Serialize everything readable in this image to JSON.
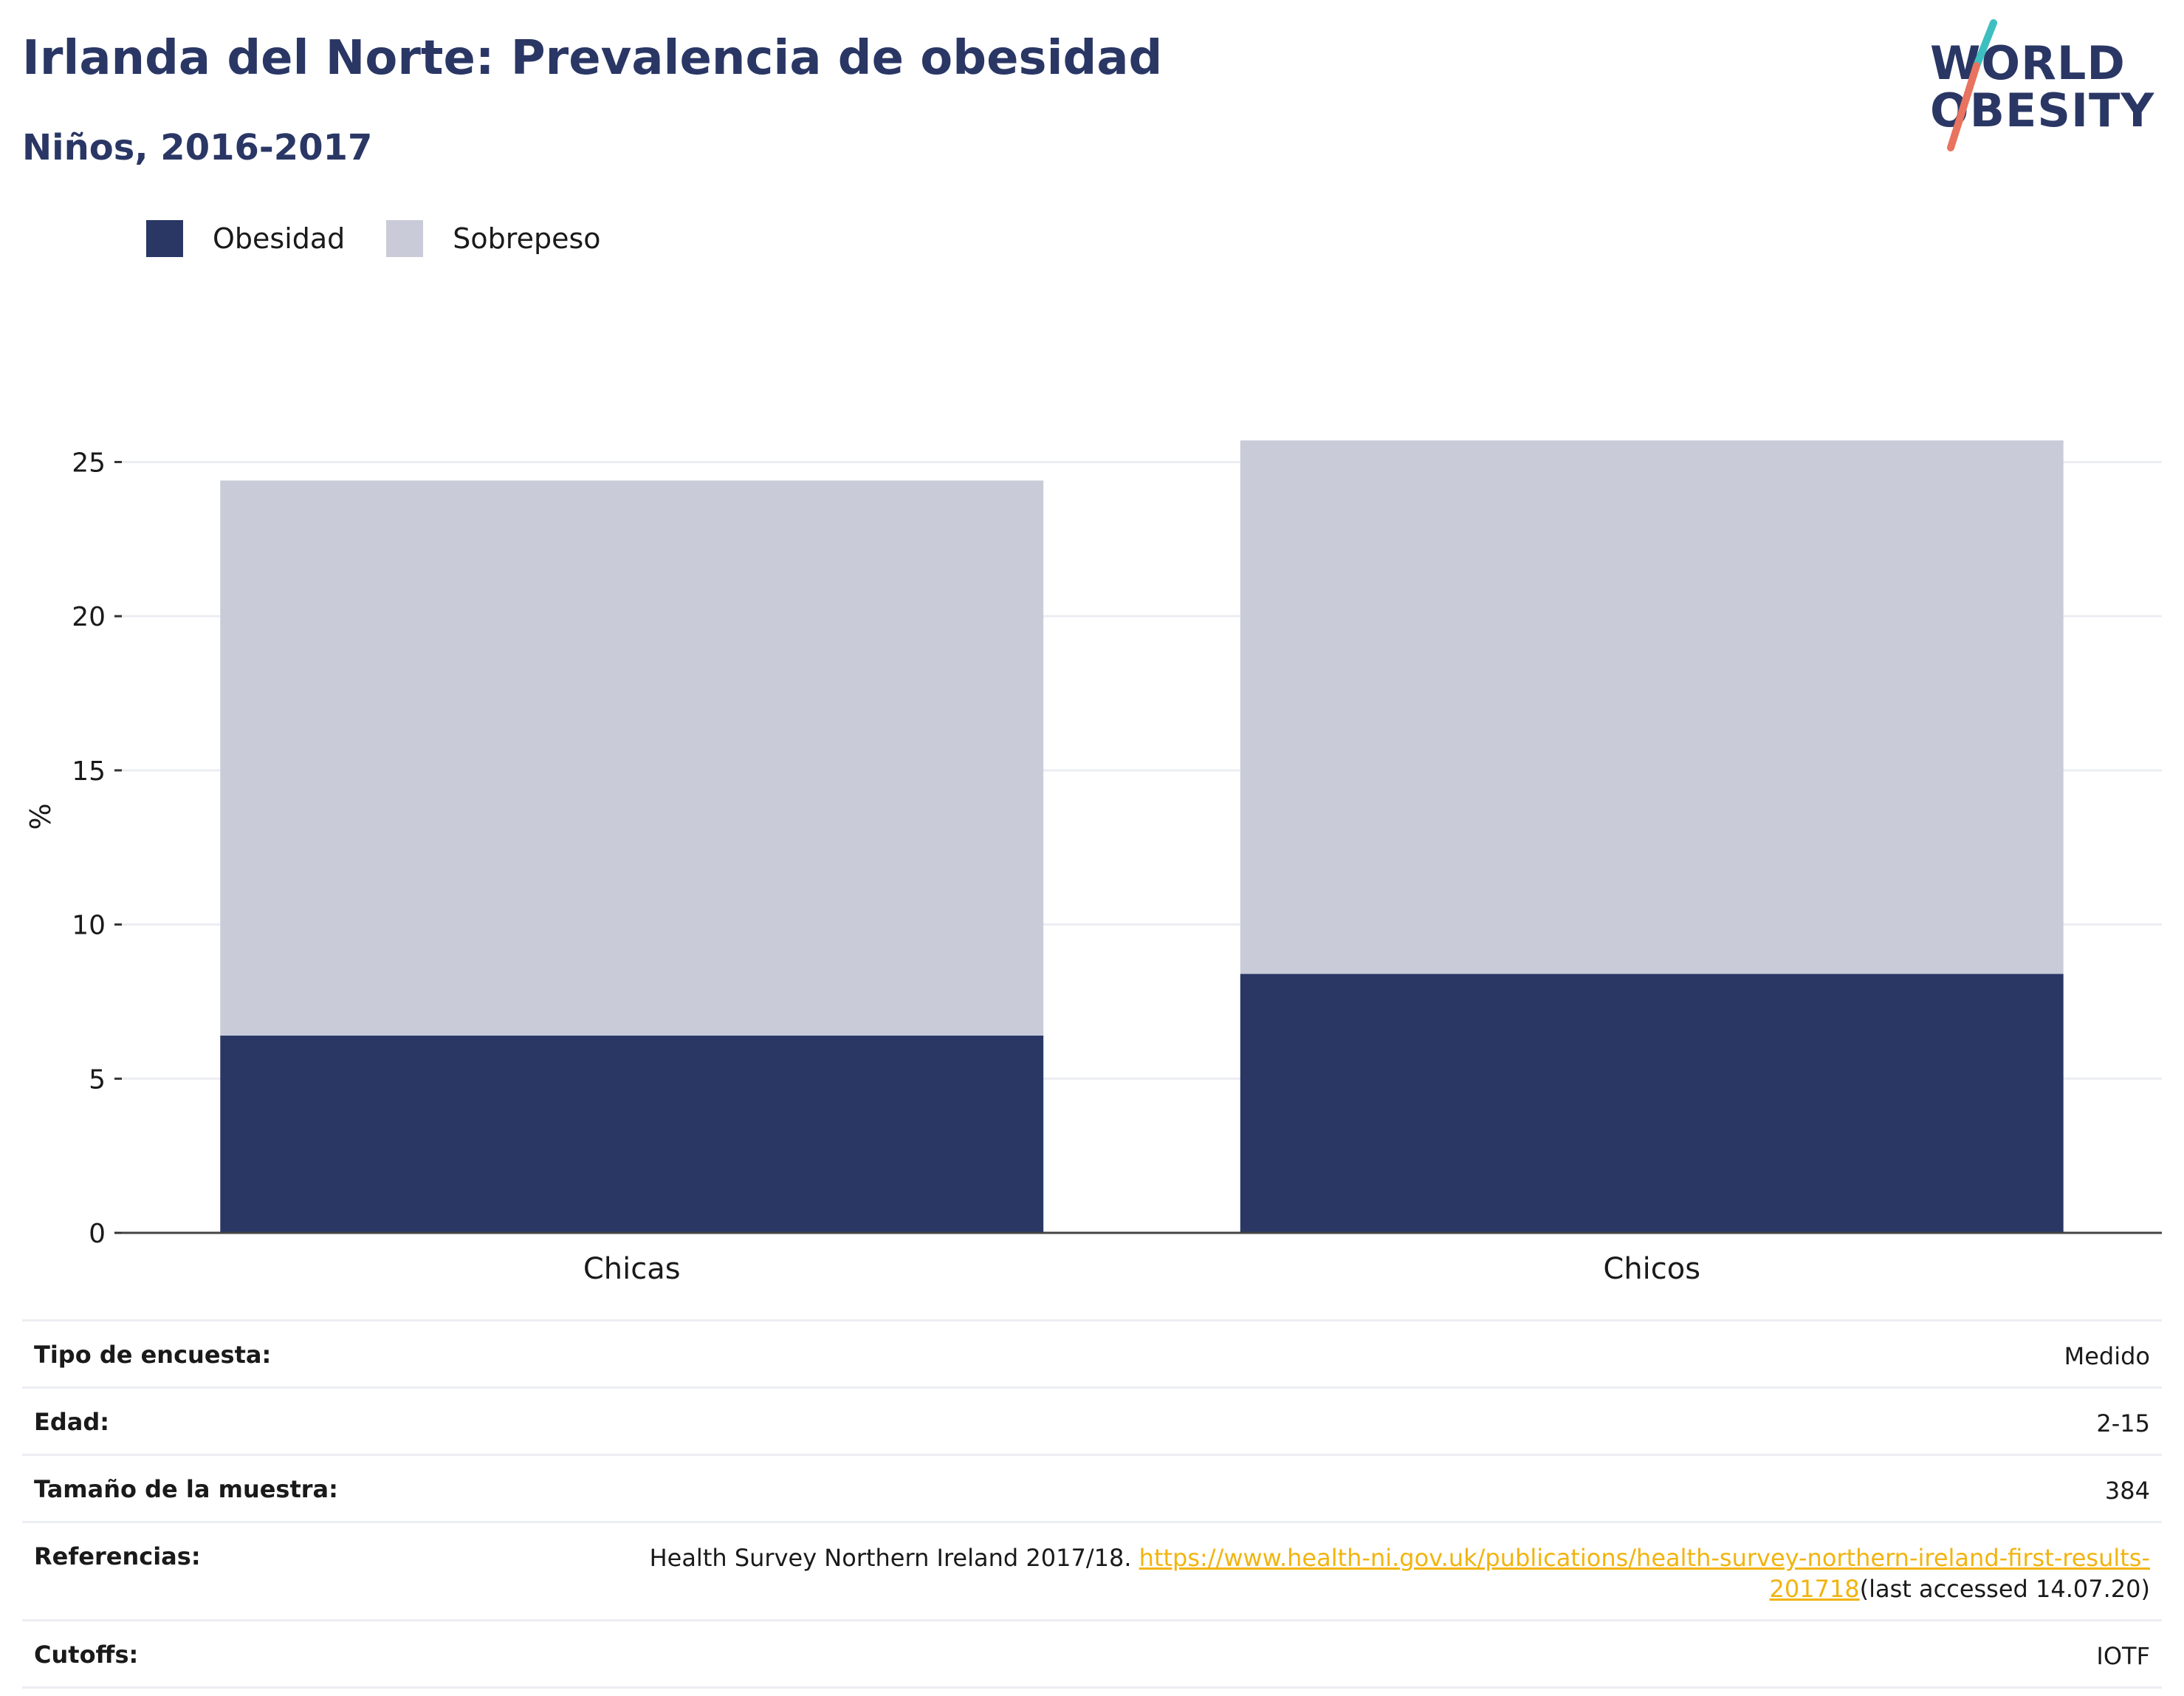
{
  "header": {
    "title": "Irlanda del Norte: Prevalencia de obesidad",
    "subtitle": "Niños, 2016-2017"
  },
  "logo": {
    "line1": "WORLD",
    "line2": "OBESITY"
  },
  "colors": {
    "obesidad": "#2a3765",
    "sobrepeso": "#c9ccd8",
    "title": "#2a3765",
    "link": "#f1b40f",
    "logo_teal": "#3dbfc1",
    "logo_coral": "#e8735f"
  },
  "legend": {
    "items": [
      {
        "label": "Obesidad",
        "color": "#2a3765"
      },
      {
        "label": "Sobrepeso",
        "color": "#c9ccd8"
      }
    ]
  },
  "chart_data": {
    "type": "bar",
    "stacked": true,
    "title": "Irlanda del Norte: Prevalencia de obesidad",
    "subtitle": "Niños, 2016-2017",
    "categories": [
      "Chicas",
      "Chicos"
    ],
    "series": [
      {
        "name": "Obesidad",
        "values": [
          6.4,
          8.4
        ],
        "color": "#2a3765"
      },
      {
        "name": "Sobrepeso",
        "values": [
          18.0,
          17.3
        ],
        "color": "#c9ccd8"
      }
    ],
    "totals": [
      24.4,
      25.7
    ],
    "xlabel": "",
    "ylabel": "%",
    "ylim": [
      0,
      27
    ],
    "yticks": [
      0,
      5,
      10,
      15,
      20,
      25
    ],
    "grid": true,
    "legend_position": "top-left"
  },
  "meta": {
    "rows": [
      {
        "key": "Tipo de encuesta:",
        "value": "Medido"
      },
      {
        "key": "Edad:",
        "value": "2-15"
      },
      {
        "key": "Tamaño de la muestra:",
        "value": "384"
      },
      {
        "key": "Cutoffs:",
        "value": "IOTF"
      }
    ],
    "reference": {
      "key": "Referencias:",
      "text": "Health Survey Northern Ireland 2017/18. ",
      "link": "https://www.health-ni.gov.uk/publications/health-survey-northern-ireland-first-results-201718",
      "suffix": "(last accessed 14.07.20)"
    }
  }
}
